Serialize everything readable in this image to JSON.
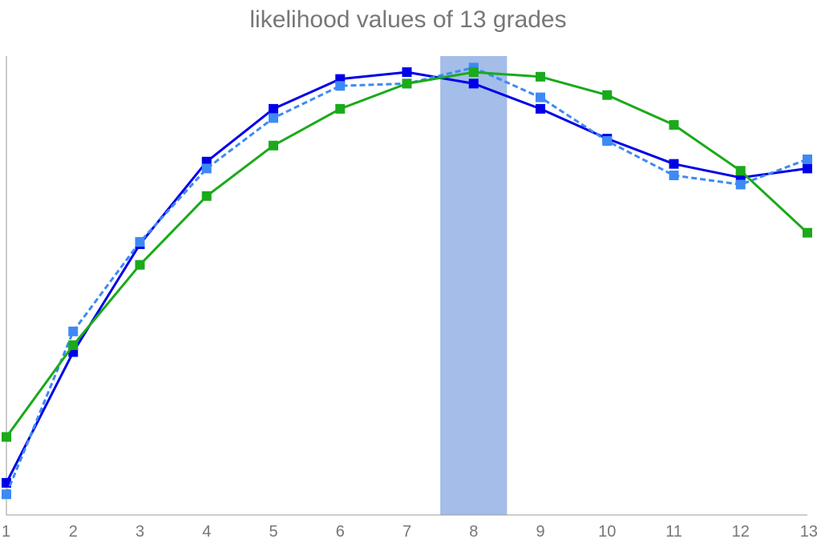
{
  "chart_data": {
    "type": "line",
    "title": "likelihood values of 13 grades",
    "xlabel": "",
    "ylabel": "",
    "categories": [
      "1",
      "2",
      "3",
      "4",
      "5",
      "6",
      "7",
      "8",
      "9",
      "10",
      "11",
      "12",
      "13"
    ],
    "ylim": [
      0,
      1
    ],
    "grid": false,
    "y_ticks_shown": false,
    "highlight_category": "8",
    "highlight_color": "#a4bde9",
    "series": [
      {
        "color": "#0000e8",
        "style": "solid",
        "marker": "square",
        "values": [
          0.07,
          0.355,
          0.59,
          0.77,
          0.885,
          0.95,
          0.965,
          0.94,
          0.885,
          0.82,
          0.765,
          0.735,
          0.755
        ]
      },
      {
        "color": "#3d8af5",
        "style": "dashed",
        "marker": "square",
        "values": [
          0.045,
          0.4,
          0.595,
          0.755,
          0.865,
          0.935,
          0.94,
          0.975,
          0.91,
          0.815,
          0.74,
          0.72,
          0.775
        ]
      },
      {
        "color": "#1aaa1a",
        "style": "solid",
        "marker": "square",
        "values": [
          0.17,
          0.37,
          0.545,
          0.695,
          0.805,
          0.885,
          0.94,
          0.965,
          0.955,
          0.915,
          0.85,
          0.75,
          0.615
        ]
      }
    ]
  }
}
